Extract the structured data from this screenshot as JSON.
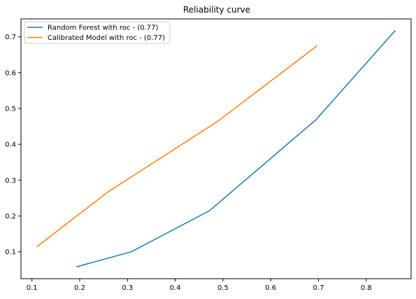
{
  "chart_data": {
    "type": "line",
    "title": "Reliability curve",
    "xlabel": "",
    "ylabel": "",
    "xlim": [
      0.077,
      0.894
    ],
    "ylim": [
      0.025,
      0.75
    ],
    "xticks": [
      0.1,
      0.2,
      0.3,
      0.4,
      0.5,
      0.6,
      0.7,
      0.8
    ],
    "yticks": [
      0.1,
      0.2,
      0.3,
      0.4,
      0.5,
      0.6,
      0.7
    ],
    "xtick_labels": [
      "0.1",
      "0.2",
      "0.3",
      "0.4",
      "0.5",
      "0.6",
      "0.7",
      "0.8"
    ],
    "ytick_labels": [
      "0.1",
      "0.2",
      "0.3",
      "0.4",
      "0.5",
      "0.6",
      "0.7"
    ],
    "grid": false,
    "legend_position": "top-left",
    "series": [
      {
        "name": "Random Forest with roc - (0.77)",
        "color": "#1f77b4",
        "x": [
          0.193,
          0.308,
          0.472,
          0.695,
          0.861
        ],
        "y": [
          0.058,
          0.1,
          0.215,
          0.469,
          0.718
        ]
      },
      {
        "name": "Calibrated Model with roc - (0.77)",
        "color": "#ff7f0e",
        "x": [
          0.11,
          0.26,
          0.49,
          0.697
        ],
        "y": [
          0.114,
          0.268,
          0.465,
          0.675
        ]
      }
    ]
  }
}
